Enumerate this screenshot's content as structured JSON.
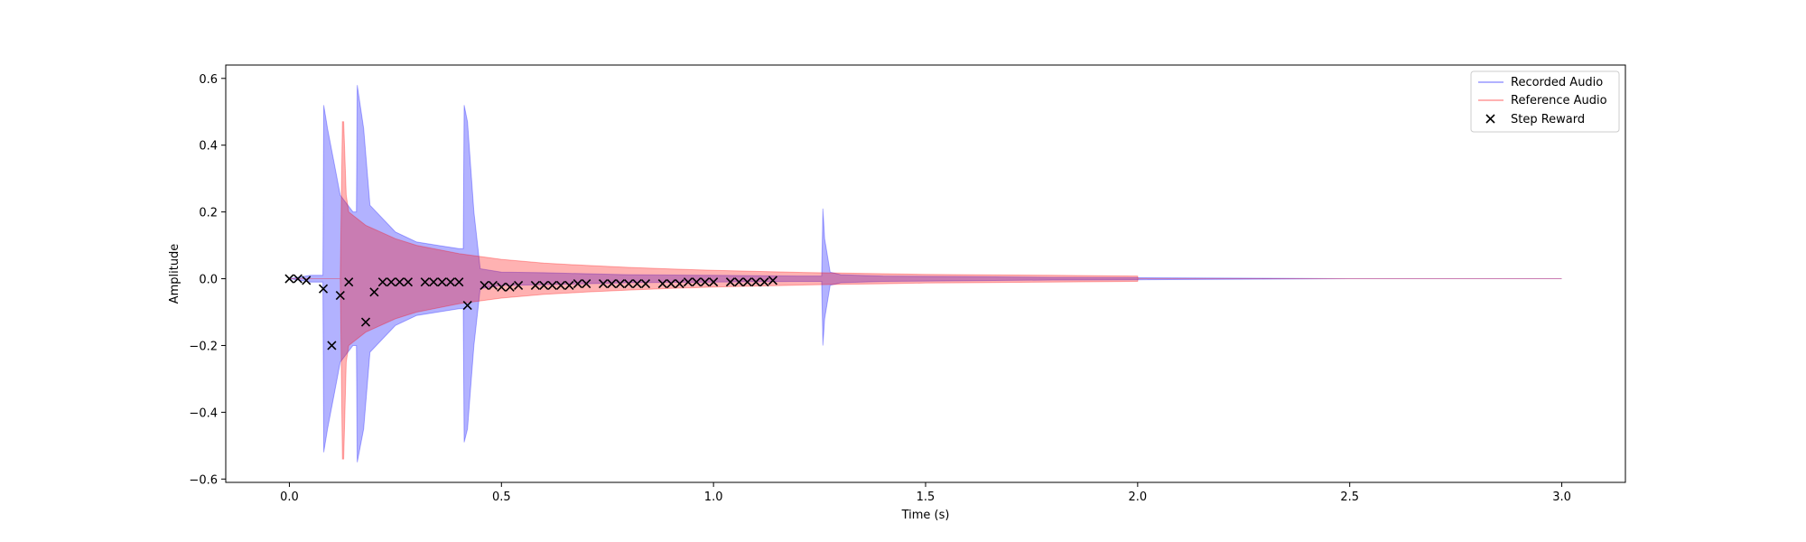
{
  "chart_data": {
    "type": "line",
    "title": "",
    "xlabel": "Time (s)",
    "ylabel": "Amplitude",
    "xlim": [
      -0.15,
      3.15
    ],
    "ylim": [
      -0.61,
      0.64
    ],
    "xticks": [
      0.0,
      0.5,
      1.0,
      1.5,
      2.0,
      2.5,
      3.0
    ],
    "xtick_labels": [
      "0.0",
      "0.5",
      "1.0",
      "1.5",
      "2.0",
      "2.5",
      "3.0"
    ],
    "yticks": [
      -0.6,
      -0.4,
      -0.2,
      0.0,
      0.2,
      0.4,
      0.6
    ],
    "ytick_labels": [
      "−0.6",
      "−0.4",
      "−0.2",
      "0.0",
      "0.2",
      "0.4",
      "0.6"
    ],
    "grid": false,
    "legend_position": "top-right",
    "series": [
      {
        "name": "Recorded Audio",
        "kind": "waveform-envelope",
        "color": "#0000ff",
        "alpha": 0.3,
        "envelope": {
          "t": [
            0.0,
            0.05,
            0.079,
            0.081,
            0.09,
            0.105,
            0.12,
            0.15,
            0.158,
            0.16,
            0.175,
            0.19,
            0.25,
            0.3,
            0.35,
            0.4,
            0.41,
            0.412,
            0.42,
            0.435,
            0.45,
            0.5,
            0.6,
            0.7,
            0.8,
            1.0,
            1.2,
            1.255,
            1.258,
            1.262,
            1.275,
            1.3,
            1.4,
            1.6,
            1.8,
            2.0,
            2.5,
            3.0
          ],
          "upper": [
            0.0,
            0.01,
            0.01,
            0.52,
            0.45,
            0.35,
            0.25,
            0.2,
            0.2,
            0.58,
            0.45,
            0.22,
            0.14,
            0.11,
            0.1,
            0.09,
            0.09,
            0.52,
            0.47,
            0.2,
            0.03,
            0.02,
            0.018,
            0.015,
            0.012,
            0.01,
            0.008,
            0.008,
            0.21,
            0.12,
            0.02,
            0.012,
            0.008,
            0.006,
            0.004,
            0.003,
            0.0,
            0.0
          ],
          "lower": [
            0.0,
            -0.01,
            -0.01,
            -0.52,
            -0.45,
            -0.35,
            -0.25,
            -0.2,
            -0.2,
            -0.55,
            -0.45,
            -0.22,
            -0.14,
            -0.11,
            -0.1,
            -0.09,
            -0.09,
            -0.49,
            -0.45,
            -0.2,
            -0.03,
            -0.02,
            -0.018,
            -0.015,
            -0.012,
            -0.01,
            -0.008,
            -0.008,
            -0.2,
            -0.12,
            -0.02,
            -0.012,
            -0.008,
            -0.006,
            -0.004,
            -0.003,
            0.0,
            0.0
          ]
        }
      },
      {
        "name": "Reference Audio",
        "kind": "waveform-envelope",
        "color": "#ff0000",
        "alpha": 0.3,
        "envelope": {
          "t": [
            0.0,
            0.12,
            0.125,
            0.128,
            0.134,
            0.14,
            0.18,
            0.25,
            0.3,
            0.4,
            0.5,
            0.6,
            0.7,
            0.8,
            0.9,
            1.0,
            1.1,
            1.2,
            1.3,
            1.4,
            1.5,
            1.6,
            1.8,
            2.0,
            2.001,
            3.0
          ],
          "upper": [
            0.0,
            0.0,
            0.47,
            0.47,
            0.25,
            0.2,
            0.16,
            0.12,
            0.1,
            0.075,
            0.058,
            0.047,
            0.04,
            0.034,
            0.029,
            0.025,
            0.022,
            0.019,
            0.017,
            0.015,
            0.013,
            0.012,
            0.01,
            0.008,
            0.0,
            0.0
          ],
          "lower": [
            0.0,
            0.0,
            -0.54,
            -0.54,
            -0.25,
            -0.2,
            -0.16,
            -0.12,
            -0.1,
            -0.075,
            -0.058,
            -0.047,
            -0.04,
            -0.034,
            -0.029,
            -0.025,
            -0.022,
            -0.019,
            -0.017,
            -0.015,
            -0.013,
            -0.012,
            -0.01,
            -0.008,
            0.0,
            0.0
          ]
        }
      },
      {
        "name": "Step Reward",
        "kind": "scatter",
        "marker": "x",
        "color": "#000000",
        "points": [
          [
            0.0,
            0.0
          ],
          [
            0.02,
            0.0
          ],
          [
            0.04,
            -0.005
          ],
          [
            0.08,
            -0.03
          ],
          [
            0.1,
            -0.2
          ],
          [
            0.12,
            -0.05
          ],
          [
            0.14,
            -0.01
          ],
          [
            0.18,
            -0.13
          ],
          [
            0.2,
            -0.04
          ],
          [
            0.22,
            -0.01
          ],
          [
            0.24,
            -0.01
          ],
          [
            0.26,
            -0.01
          ],
          [
            0.28,
            -0.01
          ],
          [
            0.32,
            -0.01
          ],
          [
            0.34,
            -0.01
          ],
          [
            0.36,
            -0.01
          ],
          [
            0.38,
            -0.01
          ],
          [
            0.4,
            -0.01
          ],
          [
            0.42,
            -0.08
          ],
          [
            0.46,
            -0.02
          ],
          [
            0.48,
            -0.02
          ],
          [
            0.5,
            -0.025
          ],
          [
            0.52,
            -0.025
          ],
          [
            0.54,
            -0.02
          ],
          [
            0.58,
            -0.02
          ],
          [
            0.6,
            -0.02
          ],
          [
            0.62,
            -0.02
          ],
          [
            0.64,
            -0.02
          ],
          [
            0.66,
            -0.02
          ],
          [
            0.68,
            -0.015
          ],
          [
            0.7,
            -0.015
          ],
          [
            0.74,
            -0.015
          ],
          [
            0.76,
            -0.015
          ],
          [
            0.78,
            -0.015
          ],
          [
            0.8,
            -0.015
          ],
          [
            0.82,
            -0.015
          ],
          [
            0.84,
            -0.015
          ],
          [
            0.88,
            -0.015
          ],
          [
            0.9,
            -0.015
          ],
          [
            0.92,
            -0.015
          ],
          [
            0.94,
            -0.01
          ],
          [
            0.96,
            -0.01
          ],
          [
            0.98,
            -0.01
          ],
          [
            1.0,
            -0.01
          ],
          [
            1.04,
            -0.01
          ],
          [
            1.06,
            -0.01
          ],
          [
            1.08,
            -0.01
          ],
          [
            1.1,
            -0.01
          ],
          [
            1.12,
            -0.01
          ],
          [
            1.14,
            -0.005
          ]
        ]
      }
    ]
  }
}
